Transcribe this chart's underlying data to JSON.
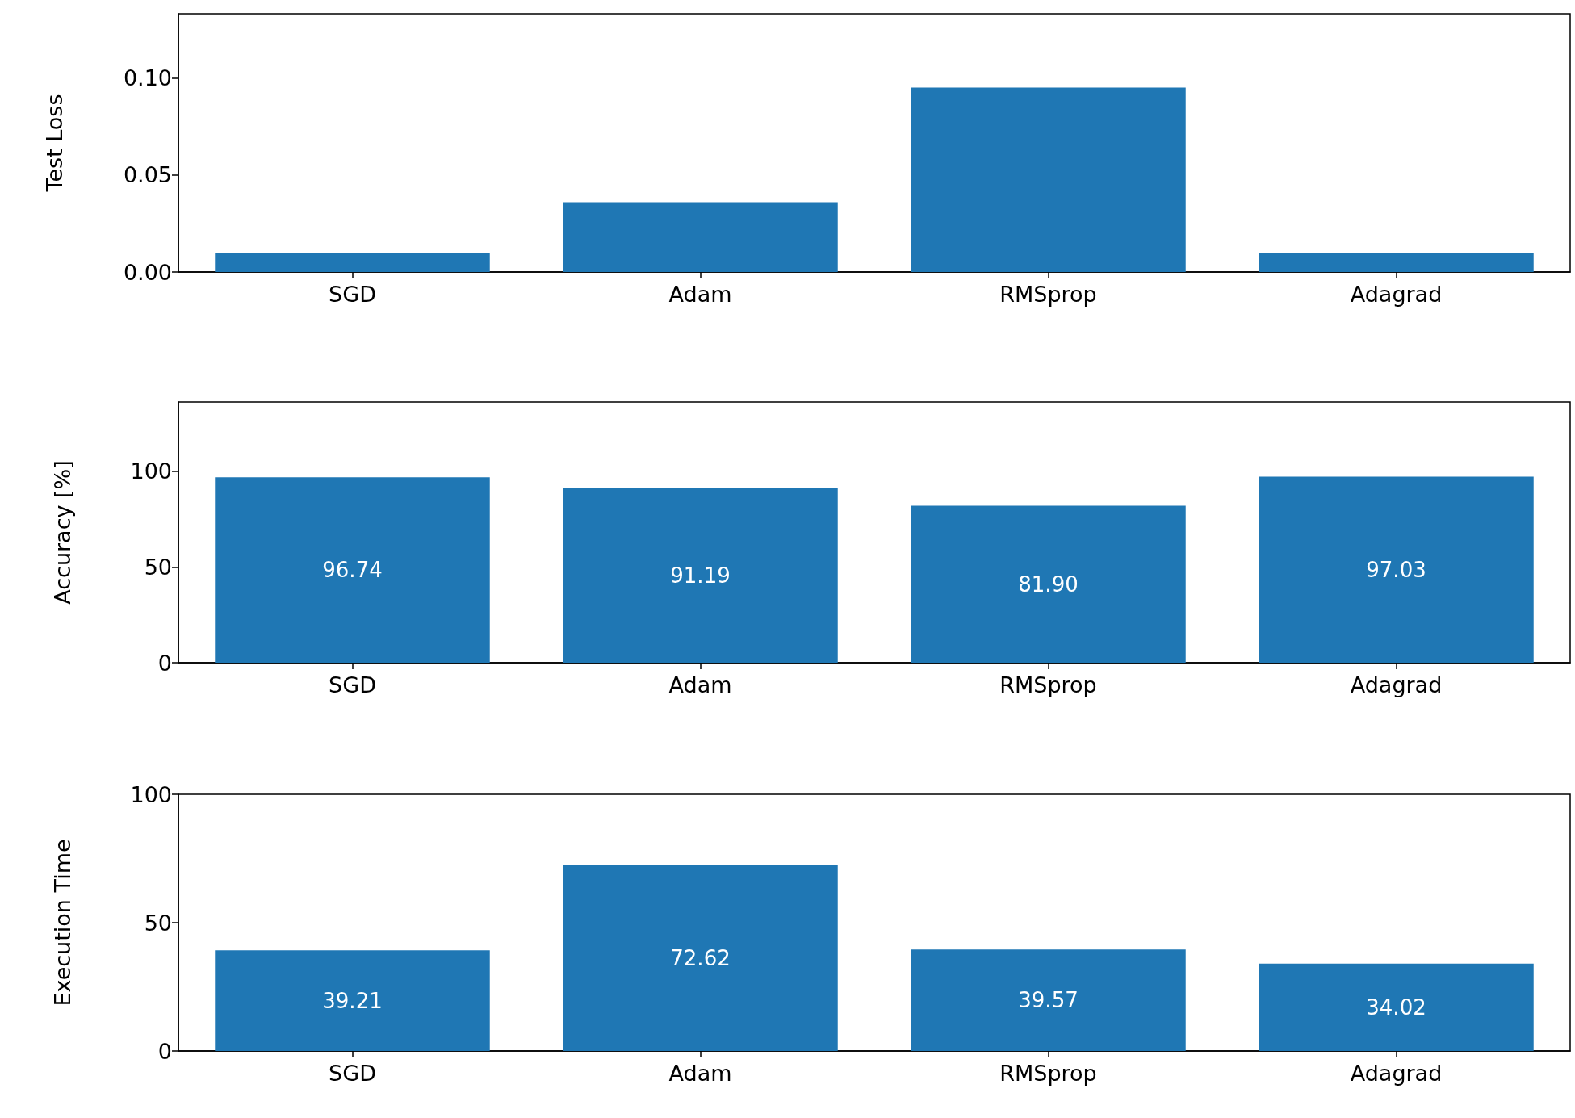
{
  "chart_data": [
    {
      "type": "bar",
      "ylabel": "Test Loss",
      "categories": [
        "SGD",
        "Adam",
        "RMSprop",
        "Adagrad"
      ],
      "values": [
        0.01,
        0.036,
        0.095,
        0.01
      ],
      "color": "#1f77b4",
      "ylim": [
        0,
        0.133
      ],
      "yticks": [
        {
          "value": 0,
          "label": "0.00"
        },
        {
          "value": 0.05,
          "label": "0.05"
        },
        {
          "value": 0.1,
          "label": "0.10"
        }
      ],
      "grid": false
    },
    {
      "type": "bar",
      "ylabel": "Accuracy [%]",
      "categories": [
        "SGD",
        "Adam",
        "RMSprop",
        "Adagrad"
      ],
      "values": [
        96.74,
        91.19,
        81.9,
        97.03
      ],
      "value_labels": [
        "96.74",
        "91.19",
        "81.90",
        "97.03"
      ],
      "color": "#1f77b4",
      "ylim": [
        0,
        136
      ],
      "yticks": [
        0,
        50,
        100
      ],
      "grid": false
    },
    {
      "type": "bar",
      "ylabel": "Execution Time",
      "categories": [
        "SGD",
        "Adam",
        "RMSprop",
        "Adagrad"
      ],
      "values": [
        39.21,
        72.62,
        39.57,
        34.02
      ],
      "value_labels": [
        "39.21",
        "72.62",
        "39.57",
        "34.02"
      ],
      "color": "#1f77b4",
      "ylim": [
        0,
        100
      ],
      "yticks": [
        0,
        50,
        100
      ],
      "grid": false
    }
  ]
}
